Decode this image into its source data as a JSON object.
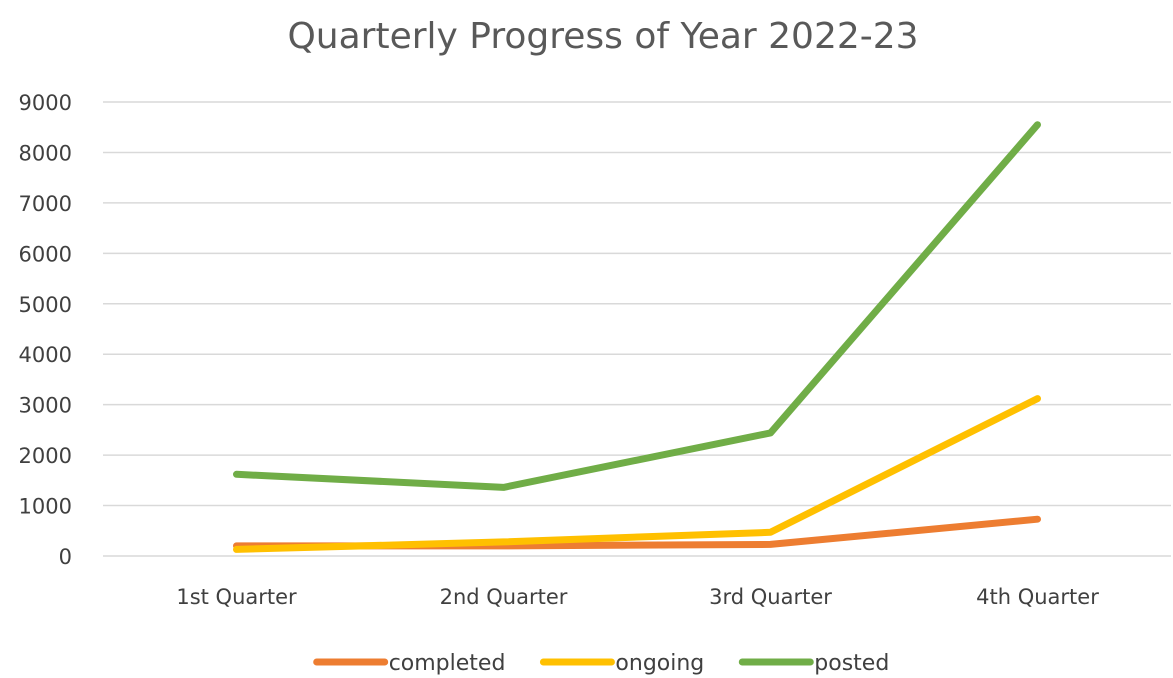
{
  "chart_data": {
    "type": "line",
    "title": "Quarterly Progress of Year 2022-23",
    "xlabel": "",
    "ylabel": "",
    "categories": [
      "1st Quarter",
      "2nd Quarter",
      "3rd Quarter",
      "4th Quarter"
    ],
    "ylim": [
      0,
      9000
    ],
    "yticks": [
      0,
      1000,
      2000,
      3000,
      4000,
      5000,
      6000,
      7000,
      8000,
      9000
    ],
    "grid": true,
    "legend_position": "bottom",
    "series": [
      {
        "name": "completed",
        "color": "#ed7d31",
        "values": [
          200,
          200,
          230,
          730
        ]
      },
      {
        "name": "ongoing",
        "color": "#ffc000",
        "values": [
          130,
          280,
          470,
          3120
        ]
      },
      {
        "name": "posted",
        "color": "#70ad47",
        "values": [
          1620,
          1360,
          2440,
          8550
        ]
      }
    ]
  }
}
